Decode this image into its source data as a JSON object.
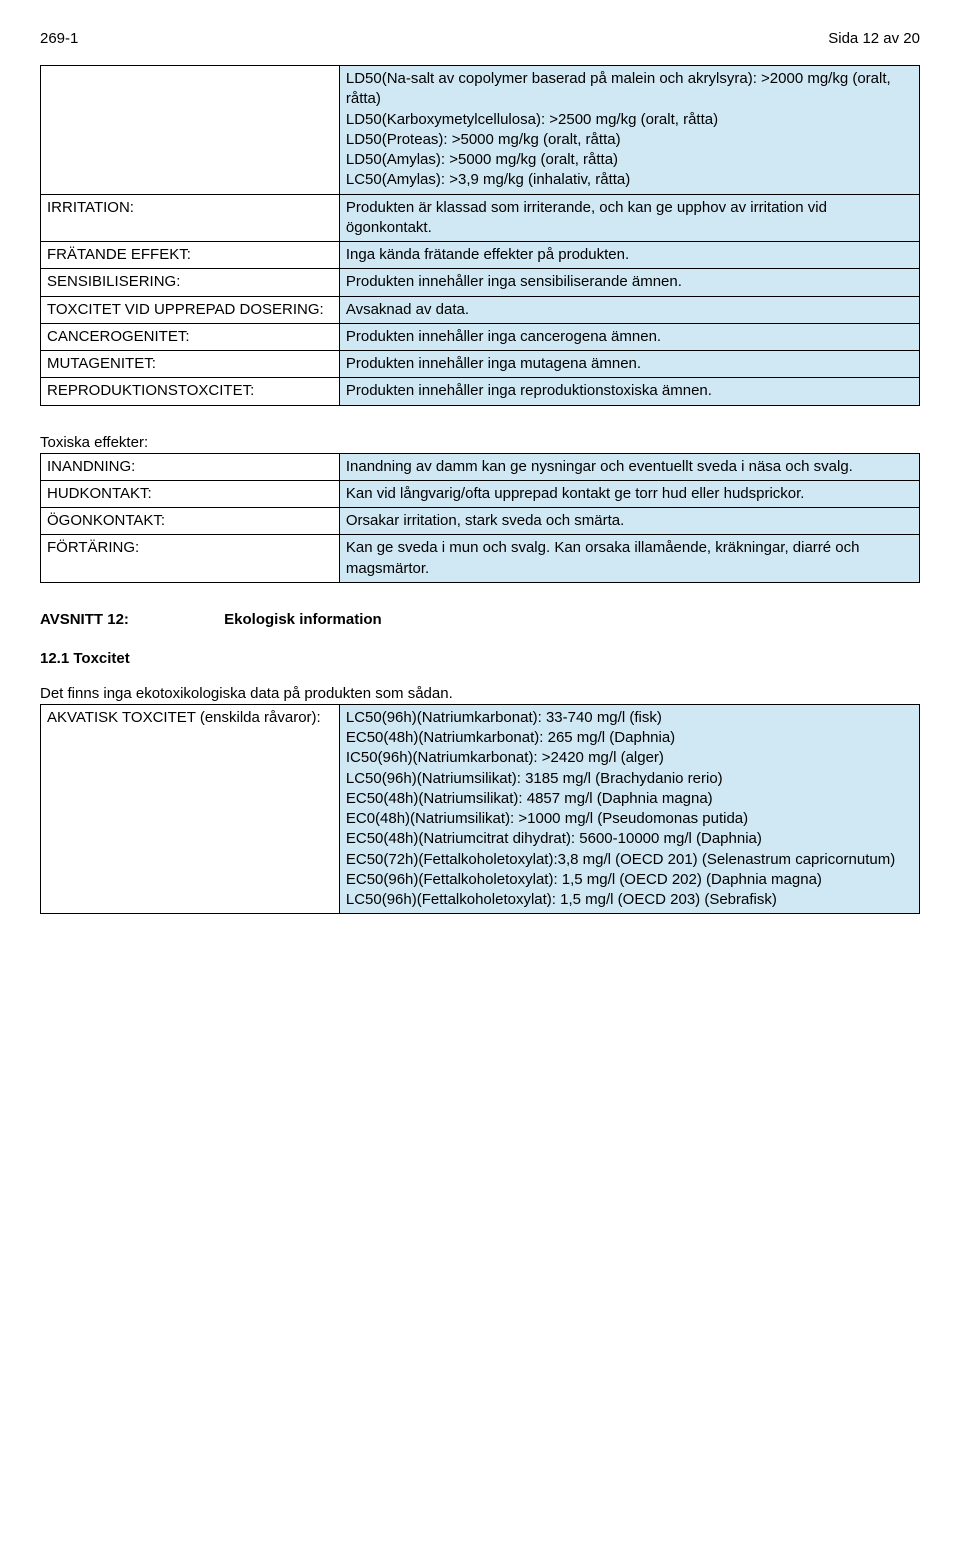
{
  "header": {
    "left": "269-1",
    "right": "Sida 12 av 20"
  },
  "table1": {
    "rows": [
      {
        "label": "",
        "value": "LD50(Na-salt av copolymer baserad på malein och akrylsyra): >2000 mg/kg (oralt, råtta)\nLD50(Karboxymetylcellulosa): >2500 mg/kg (oralt, råtta)\nLD50(Proteas): >5000 mg/kg (oralt, råtta)\nLD50(Amylas): >5000 mg/kg (oralt, råtta)\nLC50(Amylas): >3,9 mg/kg (inhalativ, råtta)"
      },
      {
        "label": "IRRITATION:",
        "value": "Produkten är klassad som irriterande, och kan ge upphov av irritation vid ögonkontakt."
      },
      {
        "label": "FRÄTANDE EFFEKT:",
        "value": "Inga kända frätande effekter på produkten."
      },
      {
        "label": "SENSIBILISERING:",
        "value": "Produkten innehåller inga sensibiliserande ämnen."
      },
      {
        "label": "TOXCITET VID UPPREPAD DOSERING:",
        "value": "Avsaknad av data."
      },
      {
        "label": "CANCEROGENITET:",
        "value": "Produkten innehåller inga cancerogena ämnen."
      },
      {
        "label": "MUTAGENITET:",
        "value": "Produkten innehåller inga mutagena ämnen."
      },
      {
        "label": "REPRODUKTIONSTOXCITET:",
        "value": "Produkten innehåller inga reproduktionstoxiska ämnen."
      }
    ]
  },
  "table2": {
    "intro": "Toxiska effekter:",
    "rows": [
      {
        "label": "INANDNING:",
        "value": "Inandning av damm kan ge nysningar och eventuellt sveda i näsa och svalg."
      },
      {
        "label": "HUDKONTAKT:",
        "value": "Kan vid långvarig/ofta upprepad kontakt ge torr hud eller hudsprickor."
      },
      {
        "label": "ÖGONKONTAKT:",
        "value": "Orsakar irritation, stark sveda och smärta."
      },
      {
        "label": "FÖRTÄRING:",
        "value": "Kan ge sveda i mun och svalg. Kan orsaka illamående, kräkningar, diarré och magsmärtor."
      }
    ]
  },
  "avsnitt": {
    "label": "AVSNITT 12:",
    "title": "Ekologisk information"
  },
  "subsection": "12.1 Toxcitet",
  "table3": {
    "intro": "Det finns inga ekotoxikologiska data på produkten som sådan.",
    "rows": [
      {
        "label": "AKVATISK TOXCITET (enskilda råvaror):",
        "value": "LC50(96h)(Natriumkarbonat): 33-740 mg/l (fisk)\nEC50(48h)(Natriumkarbonat): 265 mg/l (Daphnia)\nIC50(96h)(Natriumkarbonat): >2420 mg/l (alger)\nLC50(96h)(Natriumsilikat): 3185 mg/l (Brachydanio rerio)\nEC50(48h)(Natriumsilikat): 4857 mg/l (Daphnia magna)\nEC0(48h)(Natriumsilikat): >1000 mg/l (Pseudomonas putida)\nEC50(48h)(Natriumcitrat dihydrat): 5600-10000 mg/l (Daphnia)\nEC50(72h)(Fettalkoholetoxylat):3,8 mg/l (OECD 201) (Selenastrum capricornutum)\nEC50(96h)(Fettalkoholetoxylat): 1,5 mg/l (OECD 202) (Daphnia magna)\nLC50(96h)(Fettalkoholetoxylat): 1,5 mg/l (OECD 203) (Sebrafisk)"
      }
    ]
  }
}
